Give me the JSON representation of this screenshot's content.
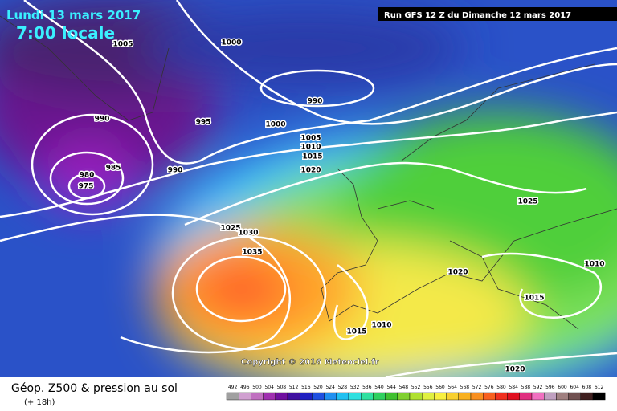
{
  "header": {
    "date": "Lundi 13 mars 2017",
    "time": "7:00 locale",
    "run": "Run GFS 12 Z du Dimanche 12 mars 2017"
  },
  "isobar_labels": [
    "1005",
    "1000",
    "990",
    "990",
    "995",
    "1000",
    "1005",
    "1010",
    "1015",
    "1020",
    "990",
    "985",
    "980",
    "975",
    "1025",
    "1025",
    "1030",
    "1035",
    "1020",
    "1010",
    "1015",
    "1010",
    "1015",
    "1020"
  ],
  "copyright": "Copyright © 2016 Meteociel.fr",
  "footer": {
    "title": "Géop. Z500 & pression au sol",
    "lead": "(+ 18h)"
  },
  "legend": {
    "labels": [
      "492",
      "496",
      "500",
      "504",
      "508",
      "512",
      "516",
      "520",
      "524",
      "528",
      "532",
      "536",
      "540",
      "544",
      "548",
      "552",
      "556",
      "560",
      "564",
      "568",
      "572",
      "576",
      "580",
      "584",
      "588",
      "592",
      "596",
      "600",
      "604",
      "608",
      "612"
    ]
  }
}
